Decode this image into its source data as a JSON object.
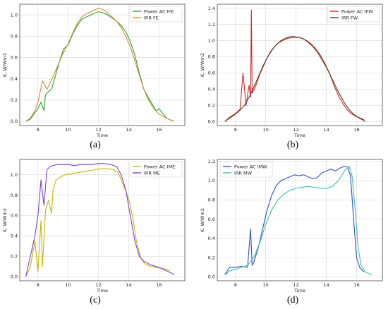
{
  "chart_data": [
    {
      "type": "line",
      "caption": "(a)",
      "xlabel": "Time",
      "ylabel": "K, W/Wm2",
      "xlim": [
        6.8,
        17.7
      ],
      "ylim": [
        -0.04,
        1.1
      ],
      "xticks": [
        8,
        10,
        12,
        14,
        16
      ],
      "yticks": [
        0.0,
        0.2,
        0.4,
        0.6,
        0.8,
        1.0
      ],
      "ytick_labels": [
        "0.0",
        "0.2",
        "0.4",
        "0.6",
        "0.8",
        "1.0"
      ],
      "legend_position": "top-right",
      "series": [
        {
          "name": "Power AC IFE",
          "color": "#2ca02c",
          "x": [
            7.2,
            7.5,
            7.8,
            8.0,
            8.2,
            8.4,
            8.5,
            8.7,
            8.9,
            9.1,
            9.3,
            9.5,
            9.7,
            10.0,
            10.3,
            10.6,
            10.9,
            11.2,
            11.5,
            11.8,
            12.0,
            12.3,
            12.6,
            12.9,
            13.2,
            13.5,
            13.8,
            14.1,
            14.4,
            14.7,
            15.0,
            15.3,
            15.6,
            15.8,
            16.0,
            16.2,
            16.5,
            16.8,
            17.0
          ],
          "y": [
            0.0,
            0.02,
            0.08,
            0.12,
            0.18,
            0.1,
            0.25,
            0.28,
            0.3,
            0.4,
            0.5,
            0.6,
            0.68,
            0.72,
            0.82,
            0.9,
            0.96,
            0.98,
            1.0,
            1.02,
            1.03,
            1.02,
            1.0,
            0.97,
            0.94,
            0.9,
            0.84,
            0.75,
            0.62,
            0.45,
            0.3,
            0.22,
            0.15,
            0.1,
            0.12,
            0.08,
            0.03,
            0.01,
            0.0
          ]
        },
        {
          "name": "IRR FE",
          "color": "#d08a3a",
          "x": [
            7.2,
            7.5,
            7.8,
            8.0,
            8.3,
            8.6,
            9.0,
            9.3,
            9.6,
            10.0,
            10.3,
            10.6,
            10.9,
            11.2,
            11.5,
            11.8,
            12.0,
            12.3,
            12.6,
            12.9,
            13.2,
            13.5,
            13.8,
            14.1,
            14.4,
            14.7,
            15.0,
            15.3,
            15.6,
            15.9,
            16.2,
            16.5,
            16.8,
            17.0
          ],
          "y": [
            0.0,
            0.03,
            0.1,
            0.18,
            0.38,
            0.3,
            0.42,
            0.52,
            0.62,
            0.73,
            0.83,
            0.92,
            0.98,
            1.01,
            1.03,
            1.05,
            1.06,
            1.05,
            1.02,
            0.98,
            0.94,
            0.88,
            0.8,
            0.7,
            0.57,
            0.43,
            0.3,
            0.2,
            0.13,
            0.08,
            0.05,
            0.03,
            0.01,
            0.0
          ]
        }
      ]
    },
    {
      "type": "line",
      "caption": "(b)",
      "xlabel": "Time",
      "ylabel": "K, W/Wm2",
      "xlim": [
        6.8,
        17.7
      ],
      "ylim": [
        -0.05,
        1.45
      ],
      "xticks": [
        8,
        10,
        12,
        14,
        16
      ],
      "yticks": [
        0.0,
        0.2,
        0.4,
        0.6,
        0.8,
        1.0,
        1.2,
        1.4
      ],
      "ytick_labels": [
        "0.0",
        "0.2",
        "0.4",
        "0.6",
        "0.8",
        "1.0",
        "1.2",
        "1.4"
      ],
      "legend_position": "top-right",
      "series": [
        {
          "name": "Power AC IFW",
          "color": "#d62728",
          "x": [
            7.3,
            7.6,
            8.0,
            8.3,
            8.5,
            8.7,
            8.9,
            9.0,
            9.05,
            9.1,
            9.3,
            9.6,
            10.0,
            10.3,
            10.6,
            10.9,
            11.2,
            11.5,
            11.8,
            12.1,
            12.4,
            12.7,
            13.0,
            13.3,
            13.6,
            13.9,
            14.2,
            14.5,
            14.8,
            15.1,
            15.4,
            15.7,
            16.0,
            16.3,
            16.5
          ],
          "y": [
            0.0,
            0.05,
            0.1,
            0.15,
            0.6,
            0.2,
            0.45,
            0.3,
            1.38,
            0.35,
            0.42,
            0.58,
            0.75,
            0.86,
            0.93,
            0.98,
            1.01,
            1.03,
            1.04,
            1.04,
            1.03,
            1.0,
            0.96,
            0.9,
            0.82,
            0.72,
            0.6,
            0.45,
            0.32,
            0.22,
            0.14,
            0.09,
            0.06,
            0.04,
            0.02
          ]
        },
        {
          "name": "IRR FW",
          "color": "#5a3a2a",
          "x": [
            7.3,
            7.6,
            8.0,
            8.3,
            8.6,
            8.9,
            9.2,
            9.5,
            9.8,
            10.1,
            10.4,
            10.7,
            11.0,
            11.3,
            11.6,
            11.9,
            12.2,
            12.5,
            12.8,
            13.1,
            13.4,
            13.7,
            14.0,
            14.3,
            14.6,
            14.9,
            15.2,
            15.5,
            15.8,
            16.1,
            16.4,
            16.6
          ],
          "y": [
            0.0,
            0.04,
            0.09,
            0.14,
            0.2,
            0.3,
            0.42,
            0.55,
            0.68,
            0.79,
            0.88,
            0.95,
            1.0,
            1.03,
            1.05,
            1.05,
            1.04,
            1.02,
            0.98,
            0.93,
            0.86,
            0.77,
            0.67,
            0.56,
            0.44,
            0.33,
            0.23,
            0.15,
            0.09,
            0.05,
            0.02,
            0.0
          ]
        }
      ]
    },
    {
      "type": "line",
      "caption": "(c)",
      "xlabel": "Time",
      "ylabel": "K, W/Wm2",
      "xlim": [
        6.8,
        17.7
      ],
      "ylim": [
        -0.04,
        1.15
      ],
      "xticks": [
        8,
        10,
        12,
        14,
        16
      ],
      "yticks": [
        0.0,
        0.2,
        0.4,
        0.6,
        0.8,
        1.0
      ],
      "ytick_labels": [
        "0.0",
        "0.2",
        "0.4",
        "0.6",
        "0.8",
        "1.0"
      ],
      "legend_position": "top-right",
      "series": [
        {
          "name": "Power AC IME",
          "color": "#c8b400",
          "x": [
            7.2,
            7.5,
            7.8,
            8.0,
            8.2,
            8.3,
            8.5,
            8.7,
            8.9,
            9.0,
            9.2,
            9.5,
            9.8,
            10.2,
            10.6,
            11.0,
            11.4,
            11.8,
            12.2,
            12.6,
            13.0,
            13.3,
            13.5,
            13.7,
            13.9,
            14.1,
            14.3,
            14.5,
            14.8,
            15.1,
            15.5,
            15.9,
            16.3,
            16.7
          ],
          "y": [
            0.0,
            0.1,
            0.35,
            0.05,
            0.55,
            0.1,
            0.65,
            0.75,
            0.62,
            0.85,
            0.95,
            0.98,
            1.0,
            1.01,
            1.02,
            1.03,
            1.04,
            1.05,
            1.06,
            1.06,
            1.05,
            1.02,
            0.95,
            0.88,
            0.8,
            0.7,
            0.55,
            0.35,
            0.18,
            0.12,
            0.1,
            0.09,
            0.08,
            0.06
          ]
        },
        {
          "name": "IRR ME",
          "color": "#7b3fe0",
          "x": [
            7.2,
            7.5,
            7.8,
            8.0,
            8.2,
            8.4,
            8.6,
            8.8,
            9.0,
            9.3,
            9.6,
            10.0,
            10.4,
            10.8,
            11.2,
            11.6,
            12.0,
            12.4,
            12.8,
            13.2,
            13.5,
            13.8,
            14.1,
            14.4,
            14.7,
            15.0,
            15.4,
            15.8,
            16.2,
            16.6,
            17.0
          ],
          "y": [
            0.0,
            0.2,
            0.4,
            0.6,
            0.95,
            0.7,
            1.05,
            1.08,
            1.09,
            1.1,
            1.1,
            1.1,
            1.09,
            1.1,
            1.1,
            1.1,
            1.11,
            1.11,
            1.1,
            1.08,
            1.0,
            0.85,
            0.6,
            0.35,
            0.2,
            0.15,
            0.12,
            0.1,
            0.08,
            0.05,
            0.02
          ]
        }
      ]
    },
    {
      "type": "line",
      "caption": "(d)",
      "xlabel": "Time",
      "ylabel": "K, W/Wm2",
      "xlim": [
        6.8,
        17.7
      ],
      "ylim": [
        -0.04,
        1.22
      ],
      "xticks": [
        8,
        10,
        12,
        14,
        16
      ],
      "yticks": [
        0.0,
        0.2,
        0.4,
        0.6,
        0.8,
        1.0,
        1.2
      ],
      "ytick_labels": [
        "0.0",
        "0.2",
        "0.4",
        "0.6",
        "0.8",
        "1.0",
        "1.2"
      ],
      "legend_position": "top-left",
      "series": [
        {
          "name": "Power AC IMW",
          "color": "#2b4fd6",
          "x": [
            7.3,
            7.6,
            8.0,
            8.4,
            8.8,
            9.0,
            9.1,
            9.2,
            9.5,
            9.8,
            10.1,
            10.4,
            10.7,
            11.0,
            11.3,
            11.6,
            11.9,
            12.2,
            12.5,
            12.8,
            13.1,
            13.4,
            13.7,
            14.0,
            14.3,
            14.6,
            14.9,
            15.2,
            15.4,
            15.6,
            15.8,
            16.0,
            16.2,
            16.5
          ],
          "y": [
            0.02,
            0.1,
            0.1,
            0.11,
            0.1,
            0.5,
            0.12,
            0.15,
            0.3,
            0.5,
            0.7,
            0.85,
            0.95,
            1.0,
            1.02,
            1.04,
            1.06,
            1.05,
            1.06,
            1.04,
            1.02,
            1.03,
            1.08,
            1.1,
            1.12,
            1.1,
            1.13,
            1.15,
            1.14,
            1.05,
            0.6,
            0.2,
            0.1,
            0.05
          ]
        },
        {
          "name": "IRR MW",
          "color": "#3cc0a0",
          "x": [
            7.3,
            7.6,
            8.0,
            8.4,
            8.8,
            9.2,
            9.6,
            10.0,
            10.4,
            10.8,
            11.2,
            11.6,
            12.0,
            12.4,
            12.8,
            13.2,
            13.6,
            14.0,
            14.4,
            14.8,
            15.2,
            15.5,
            15.7,
            15.9,
            16.1,
            16.3,
            16.6,
            17.0
          ],
          "y": [
            0.02,
            0.06,
            0.08,
            0.1,
            0.12,
            0.2,
            0.35,
            0.55,
            0.7,
            0.8,
            0.86,
            0.9,
            0.92,
            0.93,
            0.94,
            0.93,
            0.92,
            0.92,
            0.94,
            1.0,
            1.1,
            1.15,
            1.05,
            0.7,
            0.3,
            0.12,
            0.05,
            0.02
          ]
        }
      ]
    }
  ]
}
